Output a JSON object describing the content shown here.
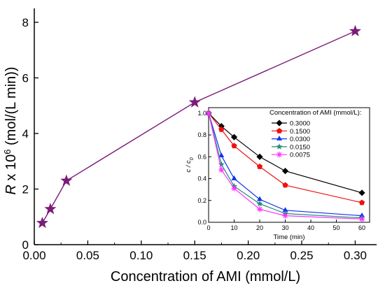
{
  "colors": {
    "main_series": "#7b1c78",
    "inset_series": [
      "#000000",
      "#ee1111",
      "#1133ee",
      "#228b7a",
      "#ff33ff"
    ]
  },
  "chart_data": [
    {
      "type": "line",
      "title": "",
      "xlabel": "Concentration of AMI (mmol/L)",
      "ylabel_prefix": "R",
      "ylabel_x": " x 10",
      "ylabel_exp": "6",
      "ylabel_unit": " (mol/(L min))",
      "xlim": [
        0,
        0.32
      ],
      "ylim": [
        0,
        8.5
      ],
      "xticks": [
        0,
        0.05,
        0.1,
        0.15,
        0.2,
        0.25,
        0.3
      ],
      "xtick_labels": [
        "0.00",
        "0.05",
        "0.10",
        "0.15",
        "0.20",
        "0.25",
        "0.30"
      ],
      "yticks": [
        0,
        2,
        4,
        6,
        8
      ],
      "ytick_labels": [
        "0",
        "2",
        "4",
        "6",
        "8"
      ],
      "marker": "star",
      "series": [
        {
          "x": [
            0.0075,
            0.015,
            0.03,
            0.15,
            0.3
          ],
          "y": [
            0.78,
            1.28,
            2.3,
            5.12,
            7.68
          ]
        }
      ]
    },
    {
      "type": "line",
      "title": "",
      "xlabel": "Time (min)",
      "ylabel_main": "c / c",
      "ylabel_sub": "0",
      "xlim": [
        0,
        63
      ],
      "ylim": [
        0,
        1.05
      ],
      "xticks": [
        0,
        10,
        20,
        30,
        40,
        50,
        60
      ],
      "xtick_labels": [
        "0",
        "10",
        "20",
        "30",
        "40",
        "50",
        "60"
      ],
      "yticks": [
        0,
        0.2,
        0.4,
        0.6,
        0.8,
        1.0
      ],
      "ytick_labels": [
        "0.0",
        "0.2",
        "0.4",
        "0.6",
        "0.8",
        "1.0"
      ],
      "legend_title": "Concentration of AMI (mmol/L):",
      "legend_position": "top-right",
      "x": [
        0,
        5,
        10,
        20,
        30,
        60
      ],
      "series": [
        {
          "name": "0.3000",
          "marker": "diamond",
          "values": [
            1.0,
            0.88,
            0.78,
            0.6,
            0.47,
            0.27
          ]
        },
        {
          "name": "0.1500",
          "marker": "pentagon",
          "values": [
            1.0,
            0.85,
            0.7,
            0.51,
            0.34,
            0.18
          ]
        },
        {
          "name": "0.0300",
          "marker": "triangle",
          "values": [
            1.0,
            0.61,
            0.4,
            0.21,
            0.11,
            0.06
          ]
        },
        {
          "name": "0.0150",
          "marker": "star",
          "values": [
            1.0,
            0.53,
            0.33,
            0.17,
            0.08,
            0.04
          ]
        },
        {
          "name": "0.0075",
          "marker": "asterisk",
          "values": [
            1.0,
            0.48,
            0.31,
            0.12,
            0.06,
            0.03
          ]
        }
      ]
    }
  ]
}
